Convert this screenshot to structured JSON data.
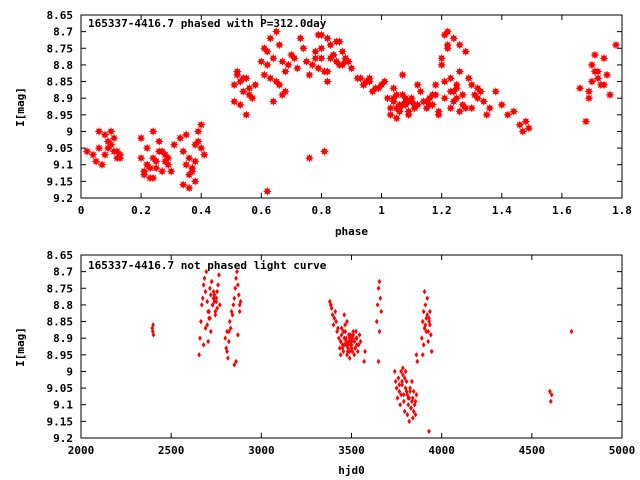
{
  "chart_data": [
    {
      "type": "scatter",
      "title": "165337-4416.7 phased with P=312.0day",
      "xlabel": "phase",
      "ylabel": "I[mag]",
      "xlim": [
        0,
        1.8
      ],
      "ylim": [
        9.2,
        8.65
      ],
      "y_inverted": true,
      "grid": false,
      "x_ticks": [
        "0",
        "0.2",
        "0.4",
        "0.6",
        "0.8",
        "1",
        "1.2",
        "1.4",
        "1.6",
        "1.8"
      ],
      "y_ticks": [
        "8.65",
        "8.7",
        "8.75",
        "8.8",
        "8.85",
        "8.9",
        "8.95",
        "9",
        "9.05",
        "9.1",
        "9.15",
        "9.2"
      ],
      "color": "#ff0000",
      "marker": "star",
      "series": [
        {
          "x": [
            0.02,
            0.05,
            0.08,
            0.1,
            0.11,
            0.12,
            0.06,
            0.09,
            0.13,
            0.07,
            0.04,
            0.1,
            0.12,
            0.09,
            0.11,
            0.08,
            0.06,
            0.13,
            0.2,
            0.21,
            0.22,
            0.23,
            0.24,
            0.25,
            0.26,
            0.27,
            0.28,
            0.29,
            0.2,
            0.22,
            0.24,
            0.26,
            0.28,
            0.21,
            0.23,
            0.25,
            0.27,
            0.29,
            0.3,
            0.31,
            0.24,
            0.22,
            0.33,
            0.34,
            0.35,
            0.36,
            0.37,
            0.38,
            0.39,
            0.4,
            0.41,
            0.34,
            0.36,
            0.38,
            0.4,
            0.35,
            0.37,
            0.39,
            0.36,
            0.38,
            0.51,
            0.52,
            0.53,
            0.54,
            0.55,
            0.56,
            0.57,
            0.58,
            0.52,
            0.54,
            0.56,
            0.53,
            0.55,
            0.51,
            0.6,
            0.61,
            0.62,
            0.63,
            0.64,
            0.65,
            0.66,
            0.67,
            0.68,
            0.69,
            0.7,
            0.62,
            0.64,
            0.66,
            0.68,
            0.61,
            0.63,
            0.65,
            0.67,
            0.62,
            0.71,
            0.72,
            0.73,
            0.74,
            0.75,
            0.76,
            0.77,
            0.78,
            0.79,
            0.8,
            0.81,
            0.82,
            0.83,
            0.84,
            0.85,
            0.86,
            0.87,
            0.88,
            0.89,
            0.9,
            0.76,
            0.78,
            0.8,
            0.82,
            0.84,
            0.86,
            0.88,
            0.81,
            0.79,
            0.8,
            0.82,
            0.85,
            0.87,
            0.83,
            0.92,
            0.94,
            0.96,
            0.98,
            1.0,
            0.93,
            0.95,
            0.97,
            0.99,
            1.01,
            0.94,
            0.96,
            1.02,
            1.03,
            1.04,
            1.05,
            1.06,
            1.07,
            1.08,
            1.09,
            1.1,
            1.11,
            1.12,
            1.13,
            1.04,
            1.06,
            1.08,
            1.1,
            1.12,
            1.03,
            1.05,
            1.07,
            1.09,
            1.11,
            1.05,
            1.07,
            1.09,
            1.04,
            1.06,
            1.08,
            1.14,
            1.15,
            1.16,
            1.17,
            1.18,
            1.19,
            1.2,
            1.21,
            1.22,
            1.23,
            1.24,
            1.25,
            1.26,
            1.27,
            1.28,
            1.16,
            1.18,
            1.2,
            1.22,
            1.24,
            1.26,
            1.15,
            1.17,
            1.19,
            1.21,
            1.23,
            1.25,
            1.27,
            1.21,
            1.22,
            1.24,
            1.26,
            1.28,
            1.23,
            1.25,
            1.29,
            1.3,
            1.31,
            1.32,
            1.33,
            1.34,
            1.36,
            1.38,
            1.4,
            1.42,
            1.44,
            1.46,
            1.48,
            1.3,
            1.32,
            1.35,
            1.47,
            1.49,
            1.66,
            1.68,
            1.69,
            1.7,
            1.71,
            1.72,
            1.73,
            1.74,
            1.75,
            1.76,
            1.7,
            1.72,
            1.74,
            1.69,
            1.71,
            1.78
          ],
          "y": [
            9.06,
            9.09,
            9.07,
            9.04,
            9.02,
            9.06,
            9.0,
            9.03,
            9.08,
            9.1,
            9.07,
            9.0,
            9.08,
            9.05,
            9.06,
            9.01,
            9.05,
            9.07,
            9.08,
            9.12,
            9.1,
            9.14,
            9.08,
            9.11,
            9.06,
            9.12,
            9.09,
            9.1,
            9.02,
            9.05,
            9.0,
            9.03,
            9.07,
            9.13,
            9.11,
            9.09,
            9.06,
            9.08,
            9.12,
            9.04,
            9.14,
            9.1,
            9.02,
            9.06,
            9.1,
            9.08,
            9.12,
            9.04,
            9.0,
            8.98,
            9.07,
            9.16,
            9.13,
            9.09,
            9.05,
            9.01,
            9.11,
            9.03,
            9.17,
            9.15,
            8.86,
            8.83,
            8.85,
            8.88,
            8.84,
            8.87,
            8.9,
            8.86,
            8.82,
            8.84,
            8.89,
            8.92,
            8.95,
            8.91,
            8.79,
            8.83,
            8.8,
            8.72,
            8.78,
            8.85,
            8.74,
            8.89,
            8.88,
            8.8,
            8.77,
            8.76,
            8.91,
            8.86,
            8.82,
            8.75,
            8.84,
            8.7,
            8.79,
            9.18,
            8.78,
            8.81,
            8.72,
            8.75,
            8.79,
            8.83,
            8.8,
            8.76,
            8.71,
            8.78,
            8.82,
            8.85,
            8.74,
            8.77,
            8.73,
            8.8,
            8.76,
            8.78,
            8.79,
            8.81,
            9.08,
            8.78,
            8.75,
            8.72,
            8.77,
            8.73,
            8.79,
            9.06,
            8.81,
            8.71,
            8.82,
            8.79,
            8.8,
            8.78,
            8.84,
            8.86,
            8.85,
            8.87,
            8.86,
            8.84,
            8.85,
            8.88,
            8.87,
            8.85,
            8.86,
            8.84,
            8.9,
            8.93,
            8.91,
            8.89,
            8.94,
            8.92,
            8.9,
            8.95,
            8.91,
            8.93,
            8.92,
            8.88,
            8.87,
            8.92,
            8.91,
            8.9,
            8.86,
            8.95,
            8.93,
            8.89,
            8.94,
            8.92,
            8.96,
            8.83,
            8.91,
            8.9,
            8.93,
            8.92,
            8.91,
            8.93,
            8.9,
            8.92,
            8.89,
            8.94,
            8.8,
            8.85,
            8.7,
            8.88,
            8.91,
            8.9,
            8.94,
            8.89,
            8.93,
            8.92,
            8.86,
            8.78,
            8.74,
            8.88,
            8.82,
            8.91,
            8.89,
            8.95,
            8.9,
            8.93,
            8.87,
            8.92,
            8.71,
            8.75,
            8.72,
            8.74,
            8.76,
            8.84,
            8.86,
            8.84,
            8.86,
            8.89,
            8.9,
            8.88,
            8.91,
            8.93,
            8.88,
            8.92,
            8.95,
            8.94,
            8.98,
            8.97,
            8.93,
            8.87,
            8.95,
            9.0,
            8.99,
            8.87,
            8.97,
            8.9,
            8.85,
            8.77,
            8.82,
            8.86,
            8.78,
            8.83,
            8.89,
            8.8,
            8.84,
            8.86,
            8.88,
            8.82,
            8.74
          ]
        }
      ]
    },
    {
      "type": "scatter",
      "title": "165337-4416.7 not phased light curve",
      "xlabel": "hjd0",
      "ylabel": "I[mag]",
      "xlim": [
        2000,
        5000
      ],
      "ylim": [
        9.2,
        8.65
      ],
      "y_inverted": true,
      "grid": false,
      "x_ticks": [
        "2000",
        "2500",
        "3000",
        "3500",
        "4000",
        "4500",
        "5000"
      ],
      "y_ticks": [
        "8.65",
        "8.7",
        "8.75",
        "8.8",
        "8.85",
        "8.9",
        "8.95",
        "9",
        "9.05",
        "9.1",
        "9.15",
        "9.2"
      ],
      "color": "#ff0000",
      "marker": "small-diamond",
      "series": [
        {
          "x": [
            2395,
            2398,
            2400,
            2402,
            2655,
            2660,
            2665,
            2670,
            2675,
            2680,
            2685,
            2690,
            2695,
            2700,
            2705,
            2710,
            2715,
            2720,
            2725,
            2730,
            2735,
            2740,
            2745,
            2750,
            2755,
            2760,
            2700,
            2710,
            2720,
            2730,
            2740,
            2750,
            2705,
            2715,
            2725,
            2735,
            2745,
            2755,
            2765,
            2770,
            2690,
            2680,
            2800,
            2805,
            2810,
            2815,
            2820,
            2825,
            2830,
            2835,
            2840,
            2845,
            2850,
            2855,
            2860,
            2865,
            2870,
            2875,
            2880,
            2885,
            2850,
            2860,
            2870,
            2880,
            2810,
            2820,
            3380,
            3385,
            3390,
            3395,
            3400,
            3405,
            3410,
            3415,
            3420,
            3425,
            3430,
            3435,
            3440,
            3445,
            3450,
            3455,
            3460,
            3465,
            3470,
            3475,
            3480,
            3485,
            3490,
            3495,
            3500,
            3505,
            3510,
            3515,
            3520,
            3525,
            3530,
            3535,
            3540,
            3545,
            3550,
            3440,
            3450,
            3460,
            3470,
            3480,
            3490,
            3500,
            3510,
            3520,
            3530,
            3445,
            3455,
            3465,
            3475,
            3485,
            3495,
            3505,
            3515,
            3525,
            3470,
            3480,
            3490,
            3500,
            3460,
            3570,
            3575,
            3640,
            3645,
            3650,
            3655,
            3660,
            3665,
            3650,
            3655,
            3740,
            3745,
            3750,
            3755,
            3760,
            3765,
            3770,
            3775,
            3780,
            3785,
            3790,
            3795,
            3800,
            3805,
            3810,
            3815,
            3820,
            3825,
            3830,
            3835,
            3840,
            3845,
            3850,
            3855,
            3860,
            3765,
            3775,
            3785,
            3795,
            3805,
            3815,
            3825,
            3835,
            3845,
            3855,
            3810,
            3820,
            3830,
            3840,
            3850,
            3780,
            3790,
            3800,
            3860,
            3865,
            3890,
            3895,
            3900,
            3905,
            3910,
            3915,
            3920,
            3925,
            3930,
            3935,
            3940,
            3900,
            3910,
            3920,
            3930,
            3905,
            3915,
            3925,
            3935,
            3895,
            3930,
            3945,
            4600,
            4605,
            4610,
            4720
          ],
          "y": [
            8.87,
            8.88,
            8.86,
            8.89,
            8.95,
            8.9,
            8.85,
            8.8,
            8.78,
            8.74,
            8.72,
            8.76,
            8.7,
            8.79,
            8.82,
            8.84,
            8.75,
            8.77,
            8.73,
            8.8,
            8.76,
            8.79,
            8.83,
            8.78,
            8.81,
            8.74,
            8.86,
            8.82,
            8.88,
            8.8,
            8.77,
            8.79,
            8.91,
            8.84,
            8.73,
            8.78,
            8.82,
            8.76,
            8.71,
            8.8,
            8.87,
            8.92,
            8.9,
            8.93,
            8.88,
            8.96,
            8.91,
            8.85,
            8.87,
            8.82,
            8.83,
            8.8,
            8.78,
            8.75,
            8.72,
            8.7,
            8.74,
            8.77,
            8.8,
            8.79,
            8.98,
            8.97,
            8.89,
            8.82,
            8.94,
            8.88,
            8.79,
            8.8,
            8.81,
            8.83,
            8.86,
            8.84,
            8.82,
            8.85,
            8.88,
            8.87,
            8.9,
            8.93,
            8.91,
            8.89,
            8.92,
            8.94,
            8.9,
            8.88,
            8.92,
            8.95,
            8.93,
            8.91,
            8.94,
            8.89,
            8.92,
            8.9,
            8.88,
            8.91,
            8.93,
            8.9,
            8.92,
            8.94,
            8.92,
            8.89,
            8.91,
            8.95,
            8.93,
            8.92,
            8.9,
            8.94,
            8.96,
            8.91,
            8.89,
            8.93,
            8.9,
            8.87,
            8.88,
            8.86,
            8.85,
            8.89,
            8.92,
            8.94,
            8.95,
            8.88,
            8.91,
            8.92,
            8.9,
            8.93,
            8.83,
            8.97,
            8.94,
            8.85,
            8.8,
            8.75,
            8.73,
            8.78,
            8.82,
            8.97,
            8.88,
            9.0,
            9.03,
            9.05,
            9.08,
            9.02,
            9.06,
            9.1,
            9.07,
            9.04,
            9.01,
            9.09,
            9.12,
            9.05,
            9.03,
            9.07,
            9.1,
            9.08,
            9.06,
            9.11,
            9.09,
            9.14,
            9.12,
            9.1,
            9.13,
            9.07,
            9.04,
            9.0,
            8.99,
            9.02,
            9.06,
            9.08,
            9.05,
            9.03,
            9.06,
            9.09,
            9.13,
            9.15,
            9.11,
            9.08,
            9.1,
            9.03,
            9.07,
            9.0,
            8.95,
            8.97,
            8.9,
            8.85,
            8.82,
            8.87,
            8.86,
            8.84,
            8.83,
            8.88,
            8.85,
            8.86,
            8.89,
            8.92,
            8.8,
            8.78,
            8.84,
            8.76,
            8.88,
            8.91,
            8.82,
            8.95,
            9.18,
            8.94,
            9.06,
            9.09,
            9.07,
            8.88
          ]
        }
      ]
    }
  ]
}
